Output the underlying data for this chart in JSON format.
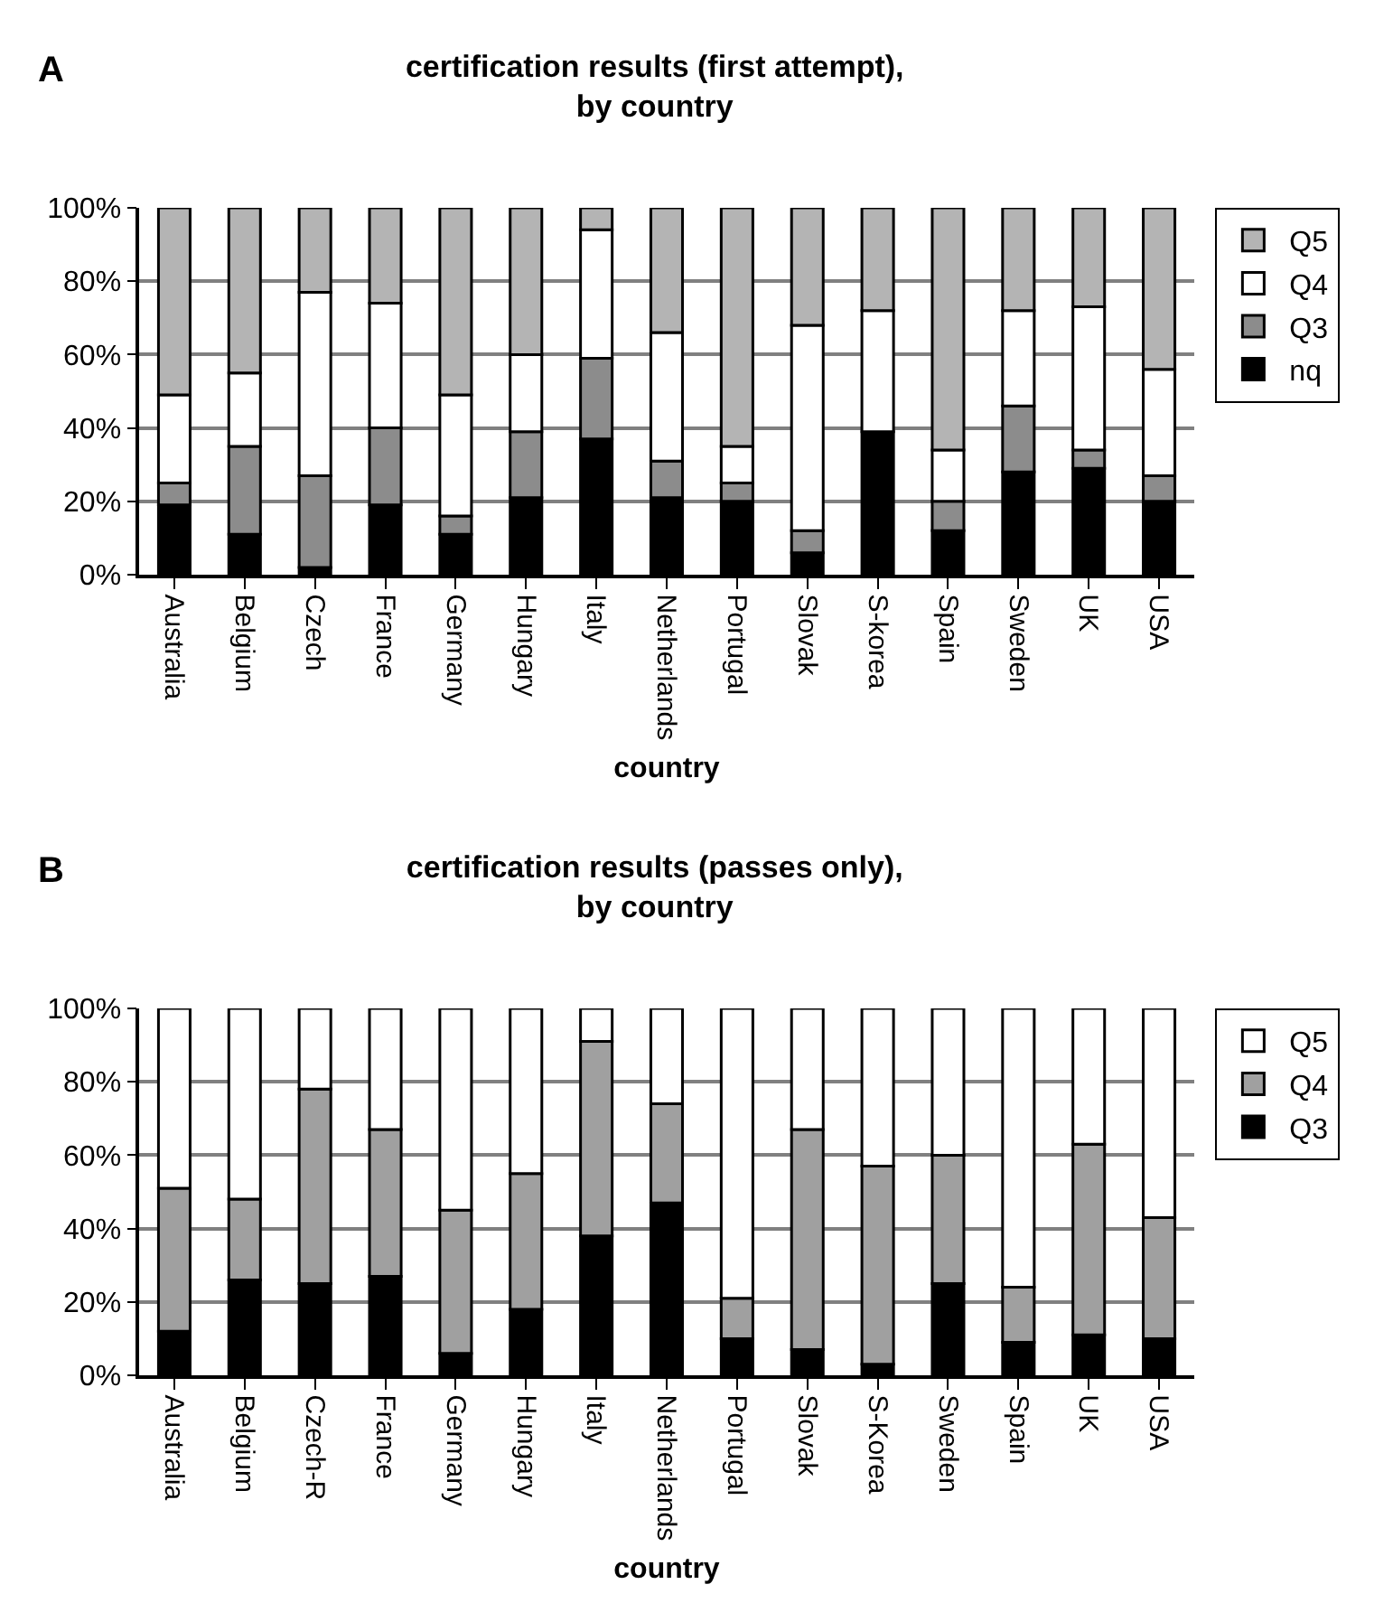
{
  "chart_data": [
    {
      "type": "bar",
      "title": "certification results (first attempt),\nby country",
      "xlabel": "country",
      "annotations": [
        "A"
      ],
      "categories": [
        "Australia",
        "Belgium",
        "Czech",
        "France",
        "Germany",
        "Hungary",
        "Italy",
        "Netherlands",
        "Portugal",
        "Slovak",
        "S-korea",
        "Spain",
        "Sweden",
        "UK",
        "USA"
      ],
      "stacked": true,
      "ylim": [
        0,
        100
      ],
      "yticks": [
        {
          "value": 0,
          "label": "0%"
        },
        {
          "value": 20,
          "label": "20%"
        },
        {
          "value": 40,
          "label": "40%"
        },
        {
          "value": 60,
          "label": "60%"
        },
        {
          "value": 80,
          "label": "80%"
        },
        {
          "value": 100,
          "label": "100%"
        }
      ],
      "grid": "y",
      "legend": "right",
      "series": [
        {
          "name": "nq",
          "color": "#000000",
          "values": [
            19,
            11,
            2,
            19,
            11,
            21,
            37,
            21,
            20,
            6,
            39,
            12,
            28,
            29,
            20
          ]
        },
        {
          "name": "Q3",
          "color": "#8c8c8c",
          "values": [
            6,
            24,
            25,
            21,
            5,
            18,
            22,
            10,
            5,
            6,
            0,
            8,
            18,
            5,
            7
          ]
        },
        {
          "name": "Q4",
          "color": "#ffffff",
          "values": [
            24,
            20,
            50,
            34,
            33,
            21,
            35,
            35,
            10,
            56,
            33,
            14,
            26,
            39,
            29
          ]
        },
        {
          "name": "Q5",
          "color": "#b4b4b4",
          "values": [
            51,
            45,
            23,
            26,
            51,
            40,
            6,
            34,
            65,
            32,
            28,
            66,
            28,
            27,
            44
          ]
        }
      ]
    },
    {
      "type": "bar",
      "title": "certification results (passes only),\nby country",
      "xlabel": "country",
      "annotations": [
        "B"
      ],
      "categories": [
        "Australia",
        "Belgium",
        "Czech-R",
        "France",
        "Germany",
        "Hungary",
        "Italy",
        "Netherlands",
        "Portugal",
        "Slovak",
        "S-Korea",
        "Sweden",
        "Spain",
        "UK",
        "USA"
      ],
      "stacked": true,
      "ylim": [
        0,
        100
      ],
      "yticks": [
        {
          "value": 0,
          "label": "0%"
        },
        {
          "value": 20,
          "label": "20%"
        },
        {
          "value": 40,
          "label": "40%"
        },
        {
          "value": 60,
          "label": "60%"
        },
        {
          "value": 80,
          "label": "80%"
        },
        {
          "value": 100,
          "label": "100%"
        }
      ],
      "grid": "y",
      "legend": "right",
      "series": [
        {
          "name": "Q3",
          "color": "#000000",
          "values": [
            12,
            26,
            25,
            27,
            6,
            18,
            38,
            47,
            10,
            7,
            3,
            25,
            9,
            11,
            10
          ]
        },
        {
          "name": "Q4",
          "color": "#a0a0a0",
          "values": [
            39,
            22,
            53,
            40,
            39,
            37,
            53,
            27,
            11,
            60,
            54,
            35,
            15,
            52,
            33
          ]
        },
        {
          "name": "Q5",
          "color": "#ffffff",
          "values": [
            49,
            52,
            22,
            33,
            55,
            45,
            9,
            26,
            79,
            33,
            43,
            40,
            76,
            37,
            57
          ]
        }
      ]
    }
  ]
}
